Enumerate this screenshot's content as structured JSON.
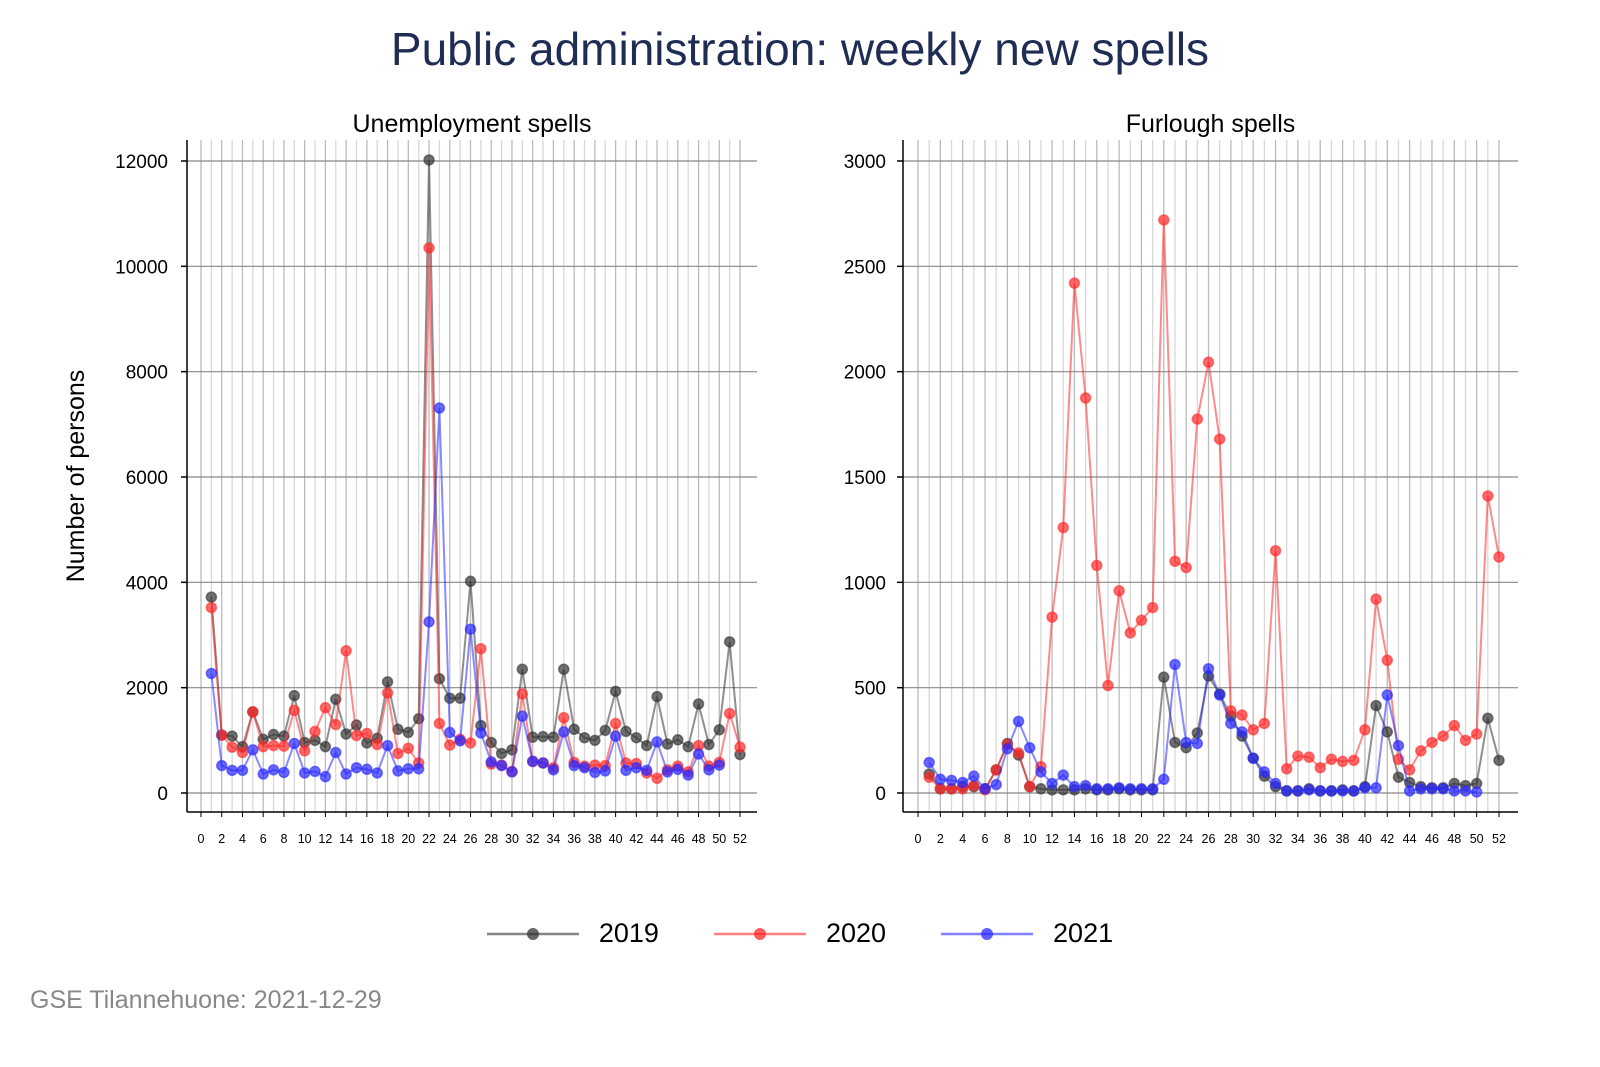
{
  "title": "Public administration: weekly new spells",
  "footer": "GSE Tilannehuone: 2021-12-29",
  "chart_data": [
    {
      "type": "line",
      "title": "Unemployment spells",
      "ylabel": "Number of persons",
      "xlabel": "",
      "xlim": [
        0,
        52
      ],
      "ylim": [
        0,
        12000
      ],
      "yticks": [
        0,
        2000,
        4000,
        6000,
        8000,
        10000,
        12000
      ],
      "xticks": [
        0,
        2,
        4,
        6,
        8,
        10,
        12,
        14,
        16,
        18,
        20,
        22,
        24,
        26,
        28,
        30,
        32,
        34,
        36,
        38,
        40,
        42,
        44,
        46,
        48,
        50,
        52
      ],
      "grid": true,
      "series": [
        {
          "name": "2019",
          "color": "#333333",
          "values": [
            3720,
            1100,
            1080,
            880,
            1540,
            1020,
            1110,
            1080,
            1850,
            960,
            1000,
            880,
            1780,
            1120,
            1290,
            950,
            1040,
            2110,
            1210,
            1150,
            1410,
            12020,
            2170,
            1800,
            1800,
            4020,
            1280,
            960,
            750,
            820,
            2350,
            1060,
            1070,
            1060,
            2350,
            1210,
            1050,
            1000,
            1190,
            1930,
            1170,
            1050,
            900,
            1830,
            930,
            1010,
            880,
            1690,
            920,
            1200,
            2870,
            730
          ]
        },
        {
          "name": "2020",
          "color": "#ff2a2a",
          "values": [
            3520,
            1100,
            870,
            770,
            1540,
            880,
            900,
            890,
            1570,
            800,
            1170,
            1620,
            1300,
            2700,
            1090,
            1130,
            920,
            1900,
            750,
            850,
            570,
            10350,
            1320,
            910,
            1020,
            950,
            2740,
            550,
            530,
            410,
            1880,
            600,
            570,
            480,
            1430,
            580,
            510,
            530,
            520,
            1320,
            570,
            560,
            380,
            280,
            440,
            510,
            400,
            900,
            510,
            580,
            1510,
            870
          ]
        },
        {
          "name": "2021",
          "color": "#2a2aff",
          "values": [
            2270,
            520,
            430,
            430,
            820,
            360,
            440,
            390,
            940,
            380,
            410,
            310,
            770,
            360,
            480,
            450,
            380,
            900,
            420,
            460,
            460,
            3250,
            7310,
            1150,
            990,
            3110,
            1140,
            590,
            520,
            400,
            1460,
            600,
            570,
            440,
            1160,
            520,
            480,
            390,
            420,
            1080,
            430,
            480,
            430,
            970,
            400,
            450,
            340,
            740,
            440,
            530
          ]
        }
      ]
    },
    {
      "type": "line",
      "title": "Furlough spells",
      "xlabel": "",
      "xlim": [
        0,
        52
      ],
      "ylim": [
        0,
        3000
      ],
      "yticks": [
        0,
        500,
        1000,
        1500,
        2000,
        2500,
        3000
      ],
      "xticks": [
        0,
        2,
        4,
        6,
        8,
        10,
        12,
        14,
        16,
        18,
        20,
        22,
        24,
        26,
        28,
        30,
        32,
        34,
        36,
        38,
        40,
        42,
        44,
        46,
        48,
        50,
        52
      ],
      "grid": true,
      "series": [
        {
          "name": "2019",
          "color": "#333333",
          "values": [
            90,
            20,
            20,
            30,
            30,
            20,
            110,
            235,
            180,
            30,
            20,
            15,
            15,
            15,
            20,
            15,
            15,
            20,
            15,
            15,
            15,
            550,
            240,
            215,
            285,
            555,
            470,
            365,
            270,
            165,
            80,
            30,
            10,
            10,
            20,
            10,
            10,
            15,
            10,
            30,
            415,
            290,
            75,
            50,
            30,
            25,
            25,
            45,
            35,
            45,
            355,
            155
          ]
        },
        {
          "name": "2020",
          "color": "#ff2a2a",
          "values": [
            75,
            20,
            20,
            20,
            35,
            15,
            110,
            230,
            190,
            30,
            125,
            835,
            1260,
            2420,
            1875,
            1080,
            510,
            960,
            760,
            820,
            880,
            2720,
            1100,
            1070,
            1775,
            2045,
            1680,
            390,
            370,
            300,
            330,
            1150,
            115,
            175,
            170,
            120,
            160,
            150,
            155,
            300,
            920,
            630,
            160,
            110,
            200,
            240,
            270,
            320,
            250,
            280,
            1410,
            1120
          ]
        },
        {
          "name": "2021",
          "color": "#2a2aff",
          "values": [
            145,
            65,
            60,
            50,
            80,
            20,
            40,
            210,
            340,
            215,
            100,
            45,
            85,
            30,
            35,
            20,
            20,
            25,
            20,
            20,
            20,
            65,
            610,
            240,
            235,
            590,
            465,
            330,
            290,
            165,
            100,
            45,
            10,
            10,
            15,
            10,
            10,
            10,
            10,
            25,
            25,
            465,
            225,
            10,
            20,
            20,
            20,
            10,
            10,
            5
          ]
        }
      ]
    }
  ],
  "legend": [
    {
      "label": "2019",
      "color": "#333333"
    },
    {
      "label": "2020",
      "color": "#ff2a2a"
    },
    {
      "label": "2021",
      "color": "#2a2aff"
    }
  ]
}
